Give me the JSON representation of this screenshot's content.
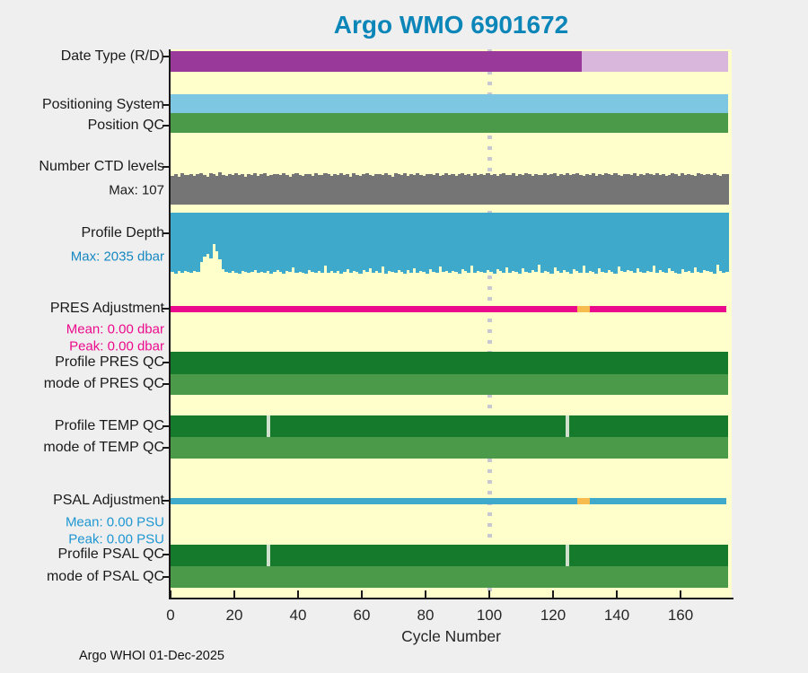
{
  "footer": {
    "text": "Argo WHOI 01-Dec-2025"
  },
  "colors": {
    "title": "#0c86b8",
    "page_background": "#efefef",
    "plot_background": "#ffffcc",
    "axis": "#1a1a1a",
    "label_text": "#1a1a1a",
    "marker_line": "#c8c8d2",
    "date_type_r": "#993999",
    "date_type_d": "#d9b6dc",
    "positioning": "#7ec7e2",
    "qc_good": "#4a9a4a",
    "qc_dark": "#167a2c",
    "qc_gap": "#cfe0cc",
    "ctd_bars": "#757575",
    "depth_bars": "#3ea9cb",
    "pres_line": "#ec0a8c",
    "psal_line": "#3ea9cb",
    "adj_alt": "#f8bb4e",
    "depth_text": "#1787c1",
    "pres_text": "#ec0a8c",
    "psal_text": "#1e96d2"
  },
  "chart_data": {
    "type": "bar",
    "subtype": "multi-row-status-plot",
    "title": "Argo WMO 6901672",
    "xlabel": "Cycle Number",
    "x_ticks": [
      0,
      20,
      40,
      60,
      80,
      100,
      120,
      140,
      160
    ],
    "x_range": [
      0,
      176
    ],
    "n_cycles": 175,
    "marker_cycle": 100,
    "grid": false,
    "legend": false,
    "rows": [
      {
        "id": "date_type",
        "label": "Date Type (R/D)",
        "type": "segments",
        "segments": [
          {
            "from": 0,
            "to": 129,
            "value": "R",
            "color_key": "date_type_r"
          },
          {
            "from": 129,
            "to": 175,
            "value": "D",
            "color_key": "date_type_d"
          }
        ]
      },
      {
        "id": "positioning",
        "label": "Positioning System",
        "type": "solid",
        "from": 0,
        "to": 175,
        "color_key": "positioning"
      },
      {
        "id": "position_qc",
        "label": "Position QC",
        "type": "solid",
        "from": 0,
        "to": 175,
        "color_key": "qc_good"
      },
      {
        "id": "ctd_levels",
        "label": "Number CTD levels",
        "type": "bars_up",
        "max": 107,
        "sublabels": [
          {
            "text": "Max: 107",
            "color_key": "label_text"
          }
        ],
        "color_key": "ctd_bars",
        "values": [
          96,
          101,
          93,
          104,
          99,
          97,
          102,
          95,
          100,
          105,
          98,
          91,
          103,
          100,
          96,
          107,
          99,
          94,
          102,
          98,
          105,
          97,
          100,
          92,
          101,
          99,
          104,
          96,
          100,
          103,
          95,
          98,
          102,
          100,
          97,
          105,
          99,
          93,
          101,
          104,
          98,
          95,
          100,
          102,
          96,
          103,
          99,
          97,
          104,
          100,
          95,
          102,
          98,
          104,
          97,
          100,
          93,
          105,
          99,
          96,
          101,
          103,
          98,
          94,
          100,
          102,
          97,
          105,
          99,
          92,
          104,
          100,
          98,
          103,
          96,
          101,
          97,
          104,
          99,
          95,
          102,
          100,
          98,
          105,
          96,
          99,
          103,
          97,
          101,
          94,
          100,
          105,
          98,
          102,
          96,
          103,
          99,
          100,
          97,
          104,
          98,
          102,
          95,
          100,
          104,
          97,
          99,
          103,
          96,
          101,
          98,
          105,
          100,
          94,
          102,
          99,
          97,
          104,
          98,
          100,
          103,
          95,
          101,
          99,
          104,
          97,
          100,
          103,
          98,
          95,
          102,
          99,
          104,
          96,
          100,
          98,
          103,
          101,
          97,
          105,
          99,
          94,
          102,
          100,
          98,
          104,
          96,
          101,
          99,
          103,
          100,
          97,
          104,
          98,
          102,
          95,
          99,
          103,
          100,
          96,
          104,
          98,
          101,
          99,
          95,
          103,
          100,
          97,
          102,
          98,
          104,
          99,
          96,
          101,
          100
        ]
      },
      {
        "id": "profile_depth",
        "label": "Profile Depth",
        "type": "bars_down",
        "max": 2035,
        "sublabels": [
          {
            "text": "Max: 2035 dbar",
            "color_key": "depth_text"
          }
        ],
        "color_key": "depth_bars",
        "values": [
          1980,
          2035,
          1955,
          2000,
          1940,
          1990,
          2020,
          1950,
          1985,
          1650,
          1470,
          1390,
          1520,
          1060,
          1280,
          1560,
          1880,
          1975,
          2010,
          1945,
          1995,
          2030,
          1958,
          1982,
          2005,
          1990,
          1930,
          2015,
          1965,
          1998,
          1942,
          2025,
          1975,
          1905,
          1988,
          2032,
          1950,
          1978,
          1830,
          2002,
          1962,
          1994,
          2028,
          1915,
          1970,
          2008,
          1938,
          1992,
          1755,
          2018,
          1960,
          2000,
          1935,
          2022,
          1968,
          1896,
          2012,
          1948,
          1985,
          2030,
          1920,
          1976,
          1870,
          2004,
          1952,
          1998,
          1810,
          2026,
          1944,
          1980,
          2015,
          1908,
          1966,
          2035,
          1928,
          1995,
          1850,
          2010,
          1940,
          1975,
          2028,
          1900,
          1962,
          2018,
          1790,
          1985,
          1945,
          2005,
          1932,
          1970,
          2032,
          1876,
          1958,
          1996,
          1765,
          2020,
          1938,
          1982,
          2008,
          1918,
          1972,
          2025,
          1890,
          1955,
          1999,
          1835,
          2014,
          1948,
          1978,
          2030,
          1860,
          1965,
          2002,
          1925,
          1988,
          1745,
          2018,
          1942,
          1976,
          2028,
          1820,
          1960,
          1994,
          1910,
          1968,
          2022,
          1884,
          1950,
          1998,
          1775,
          2012,
          1936,
          1980,
          2026,
          1855,
          1964,
          2000,
          1916,
          1972,
          2035,
          1800,
          1946,
          1990,
          1924,
          1958,
          2016,
          1868,
          1978,
          2004,
          1940,
          1985,
          1760,
          2020,
          1930,
          1966,
          2010,
          1845,
          1952,
          1992,
          2028,
          1895,
          1962,
          1938,
          2006,
          1826,
          1974,
          2018,
          1905,
          1948,
          1984,
          2030,
          1740,
          1958,
          1996,
          1970
        ]
      },
      {
        "id": "pres_adjustment",
        "label": "PRES Adjustment",
        "type": "line",
        "sublabels": [
          {
            "text": "Mean: 0.00 dbar",
            "color_key": "pres_text"
          },
          {
            "text": "Peak: 0.00 dbar",
            "color_key": "pres_text"
          }
        ],
        "segments": [
          {
            "from": 0,
            "to": 127.5,
            "color_key": "pres_line"
          },
          {
            "from": 127.5,
            "to": 131.5,
            "color_key": "adj_alt"
          },
          {
            "from": 131.5,
            "to": 174.5,
            "color_key": "pres_line"
          }
        ]
      },
      {
        "id": "profile_pres_qc",
        "label": "Profile PRES QC",
        "type": "solid",
        "from": 0,
        "to": 175,
        "color_key": "qc_dark",
        "gaps": []
      },
      {
        "id": "mode_pres_qc",
        "label": "mode of PRES QC",
        "type": "solid",
        "from": 0,
        "to": 175,
        "color_key": "qc_good",
        "gaps": []
      },
      {
        "id": "profile_temp_qc",
        "label": "Profile TEMP QC",
        "type": "solid",
        "from": 0,
        "to": 175,
        "color_key": "qc_dark",
        "gaps": [
          30,
          124
        ]
      },
      {
        "id": "mode_temp_qc",
        "label": "mode of TEMP QC",
        "type": "solid",
        "from": 0,
        "to": 175,
        "color_key": "qc_good",
        "gaps": []
      },
      {
        "id": "psal_adjustment",
        "label": "PSAL Adjustment",
        "type": "line",
        "sublabels": [
          {
            "text": "Mean: 0.00 PSU",
            "color_key": "psal_text"
          },
          {
            "text": "Peak: 0.00 PSU",
            "color_key": "psal_text"
          }
        ],
        "segments": [
          {
            "from": 0,
            "to": 127.5,
            "color_key": "psal_line"
          },
          {
            "from": 127.5,
            "to": 131.5,
            "color_key": "adj_alt"
          },
          {
            "from": 131.5,
            "to": 174.5,
            "color_key": "psal_line"
          }
        ]
      },
      {
        "id": "profile_psal_qc",
        "label": "Profile PSAL QC",
        "type": "solid",
        "from": 0,
        "to": 175,
        "color_key": "qc_dark",
        "gaps": [
          30,
          124
        ]
      },
      {
        "id": "mode_psal_qc",
        "label": "mode of PSAL QC",
        "type": "solid",
        "from": 0,
        "to": 175,
        "color_key": "qc_good",
        "gaps": []
      }
    ]
  }
}
